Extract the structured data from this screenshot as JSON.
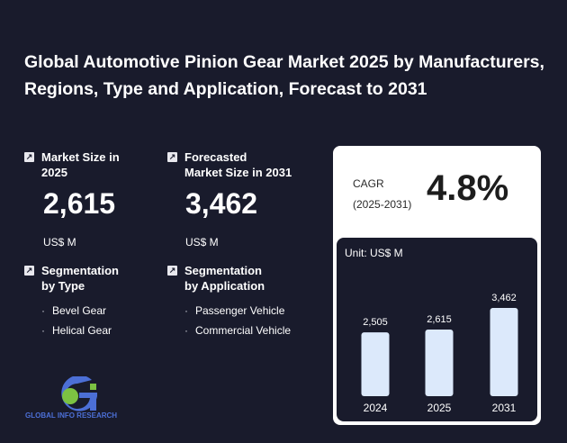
{
  "title": "Global Automotive Pinion Gear Market 2025 by Manufacturers, Regions, Type and Application, Forecast to 2031",
  "market_size": {
    "label": "Market Size in\n2025",
    "value": "2,615",
    "unit": "US$ M"
  },
  "forecast_size": {
    "label": "Forecasted\nMarket Size in 2031",
    "value": "3,462",
    "unit": "US$ M"
  },
  "seg_type": {
    "label": "Segmentation\nby Type",
    "items": [
      "Bevel Gear",
      "Helical Gear"
    ]
  },
  "seg_app": {
    "label": "Segmentation\nby Application",
    "items": [
      "Passenger Vehicle",
      "Commercial Vehicle"
    ]
  },
  "cagr": {
    "label": "CAGR",
    "period": "(2025-2031)",
    "value": "4.8%"
  },
  "logo": {
    "text": "GLOBAL INFO RESEARCH"
  },
  "icons": {
    "stat": "arrow-icon",
    "logo": "gir-logo-icon"
  },
  "colors": {
    "background": "#191b2c",
    "bar": "#dce9fb",
    "card": "#ffffff"
  },
  "chart_data": {
    "type": "bar",
    "unit_label": "Unit: US$ M",
    "categories": [
      "2024",
      "2025",
      "2031"
    ],
    "values": [
      2505,
      2615,
      3462
    ],
    "value_labels": [
      "2,505",
      "2,615",
      "3,462"
    ]
  }
}
